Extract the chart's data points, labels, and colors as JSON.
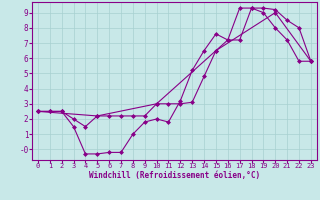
{
  "xlabel": "Windchill (Refroidissement éolien,°C)",
  "background_color": "#c8e8e8",
  "grid_color": "#a8d0d0",
  "line_color": "#880088",
  "xlim": [
    -0.5,
    23.5
  ],
  "ylim": [
    -0.7,
    9.7
  ],
  "xticks": [
    0,
    1,
    2,
    3,
    4,
    5,
    6,
    7,
    8,
    9,
    10,
    11,
    12,
    13,
    14,
    15,
    16,
    17,
    18,
    19,
    20,
    21,
    22,
    23
  ],
  "yticks": [
    0,
    1,
    2,
    3,
    4,
    5,
    6,
    7,
    8,
    9
  ],
  "ytick_labels": [
    "-0",
    "1",
    "2",
    "3",
    "4",
    "5",
    "6",
    "7",
    "8",
    "9"
  ],
  "line1_x": [
    0,
    1,
    2,
    3,
    4,
    5,
    6,
    7,
    8,
    9,
    10,
    11,
    12,
    13,
    14,
    15,
    16,
    17,
    18,
    19,
    20,
    21,
    22,
    23
  ],
  "line1_y": [
    2.5,
    2.5,
    2.5,
    2.0,
    1.5,
    2.2,
    2.2,
    2.2,
    2.2,
    2.2,
    3.0,
    3.0,
    3.0,
    3.1,
    4.8,
    6.5,
    7.2,
    7.2,
    9.3,
    9.3,
    9.2,
    8.5,
    8.0,
    5.8
  ],
  "line2_x": [
    0,
    1,
    2,
    3,
    4,
    5,
    6,
    7,
    8,
    9,
    10,
    11,
    12,
    13,
    14,
    15,
    16,
    17,
    18,
    19,
    20,
    21,
    22,
    23
  ],
  "line2_y": [
    2.5,
    2.5,
    2.5,
    1.5,
    -0.3,
    -0.3,
    -0.2,
    -0.2,
    1.0,
    1.8,
    2.0,
    1.8,
    3.2,
    5.2,
    6.5,
    7.6,
    7.2,
    9.3,
    9.3,
    9.0,
    8.0,
    7.2,
    5.8,
    5.8
  ],
  "line3_x": [
    0,
    5,
    10,
    15,
    20,
    23
  ],
  "line3_y": [
    2.5,
    2.2,
    3.0,
    6.5,
    9.0,
    5.8
  ]
}
